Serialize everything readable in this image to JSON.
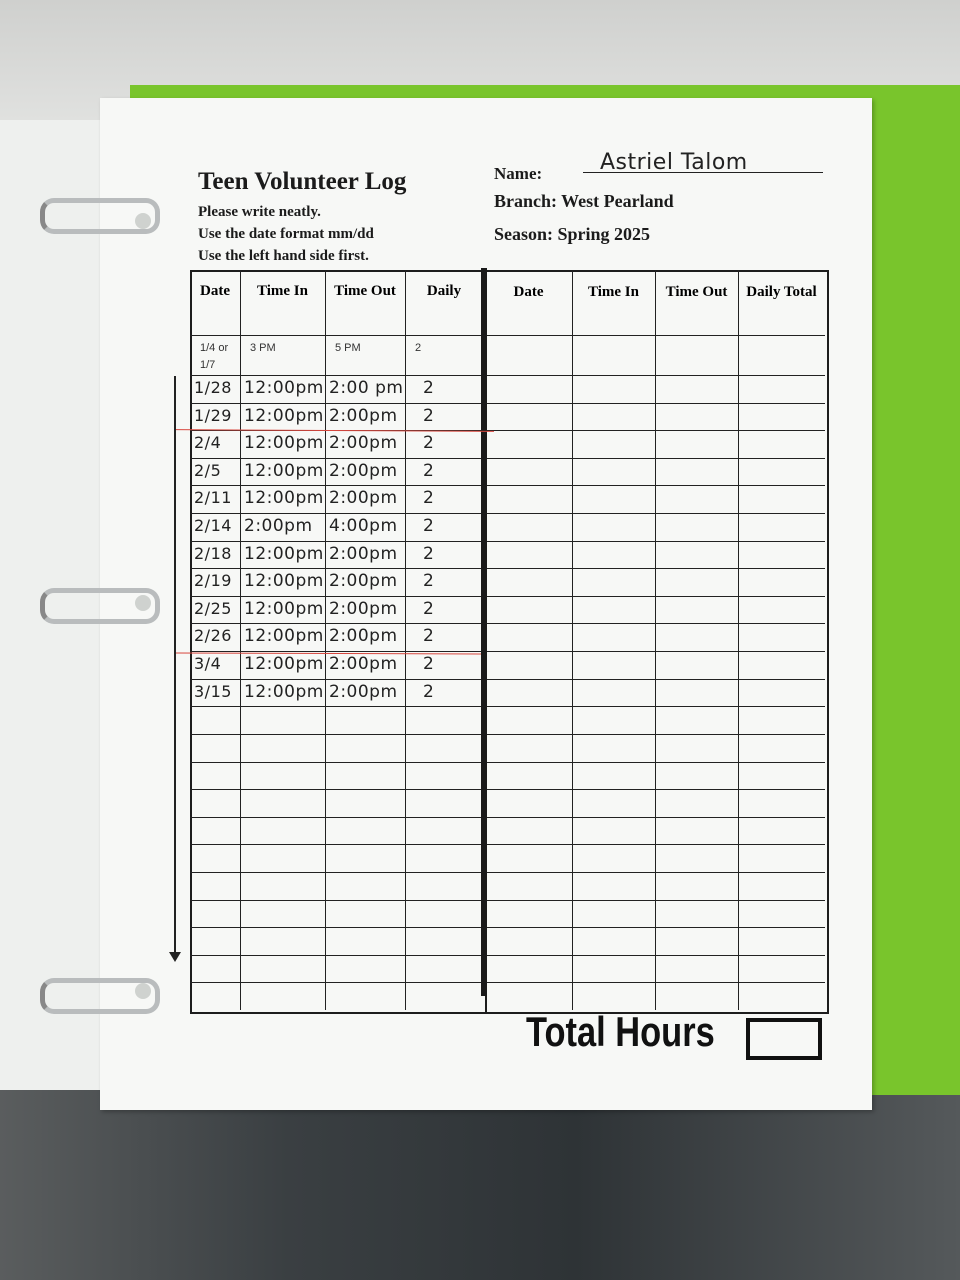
{
  "form": {
    "title": "Teen Volunteer Log",
    "instructions": [
      "Please write neatly.",
      "Use the date format mm/dd",
      "Use the left hand side first."
    ],
    "name_label": "Name:",
    "name_value": "Astriel Talom",
    "branch": "Branch: West Pearland",
    "season": "Season: Spring 2025"
  },
  "table": {
    "left_headers": [
      "Date",
      "Time In",
      "Time Out",
      "Daily"
    ],
    "right_headers": [
      "Date",
      "Time In",
      "Time Out",
      "Daily Total"
    ],
    "example": {
      "date": "1/4 or 1/7",
      "time_in": "3 PM",
      "time_out": "5 PM",
      "daily": "2"
    },
    "entries": [
      {
        "date": "1/28",
        "time_in": "12:00pm",
        "time_out": "2:00 pm",
        "daily": "2"
      },
      {
        "date": "1/29",
        "time_in": "12:00pm",
        "time_out": "2:00pm",
        "daily": "2"
      },
      {
        "date": "2/4",
        "time_in": "12:00pm",
        "time_out": "2:00pm",
        "daily": "2"
      },
      {
        "date": "2/5",
        "time_in": "12:00pm",
        "time_out": "2:00pm",
        "daily": "2"
      },
      {
        "date": "2/11",
        "time_in": "12:00pm",
        "time_out": "2:00pm",
        "daily": "2"
      },
      {
        "date": "2/14",
        "time_in": "2:00pm",
        "time_out": "4:00pm",
        "daily": "2"
      },
      {
        "date": "2/18",
        "time_in": "12:00pm",
        "time_out": "2:00pm",
        "daily": "2"
      },
      {
        "date": "2/19",
        "time_in": "12:00pm",
        "time_out": "2:00pm",
        "daily": "2"
      },
      {
        "date": "2/25",
        "time_in": "12:00pm",
        "time_out": "2:00pm",
        "daily": "2"
      },
      {
        "date": "2/26",
        "time_in": "12:00pm",
        "time_out": "2:00pm",
        "daily": "2"
      },
      {
        "date": "3/4",
        "time_in": "12:00pm",
        "time_out": "2:00pm",
        "daily": "2"
      },
      {
        "date": "3/15",
        "time_in": "12:00pm",
        "time_out": "2:00pm",
        "daily": "2"
      }
    ],
    "total_rows": 23
  },
  "footer": {
    "total_hours_label": "Total Hours",
    "total_hours_value": ""
  },
  "colors": {
    "binder": "#79c52c",
    "annotation_line": "#d8473e"
  }
}
